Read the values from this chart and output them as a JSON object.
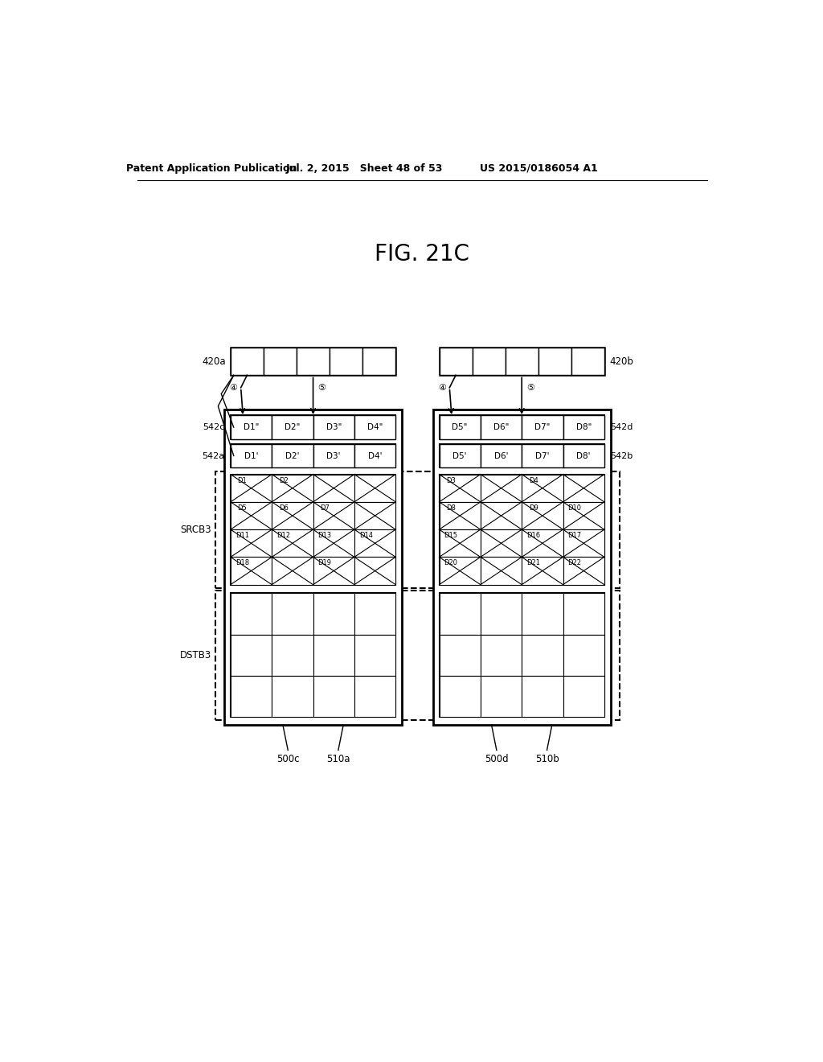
{
  "title": "FIG. 21C",
  "header_left": "Patent Application Publication",
  "header_mid": "Jul. 2, 2015   Sheet 48 of 53",
  "header_right": "US 2015/0186054 A1",
  "bg_color": "#ffffff",
  "fig_width": 10.24,
  "fig_height": 13.2,
  "left_labels_542c": [
    "D1\"",
    "D2\"",
    "D3\"",
    "D4\""
  ],
  "left_labels_542a": [
    "D1'",
    "D2'",
    "D3'",
    "D4'"
  ],
  "right_labels_542d": [
    "D5\"",
    "D6\"",
    "D7\"",
    "D8\""
  ],
  "right_labels_542b": [
    "D5'",
    "D6'",
    "D7'",
    "D8'"
  ],
  "left_grid_labels": [
    [
      "D1",
      "D2",
      "",
      ""
    ],
    [
      "D5",
      "D6",
      "D7",
      ""
    ],
    [
      "D11",
      "D12",
      "D13",
      "D14"
    ],
    [
      "D18",
      "",
      "D19",
      ""
    ]
  ],
  "right_grid_labels": [
    [
      "D3",
      "",
      "D4",
      ""
    ],
    [
      "D8",
      "",
      "D9",
      "D10"
    ],
    [
      "D15",
      "",
      "D16",
      "D17"
    ],
    [
      "D20",
      "",
      "D21",
      "D22"
    ]
  ]
}
